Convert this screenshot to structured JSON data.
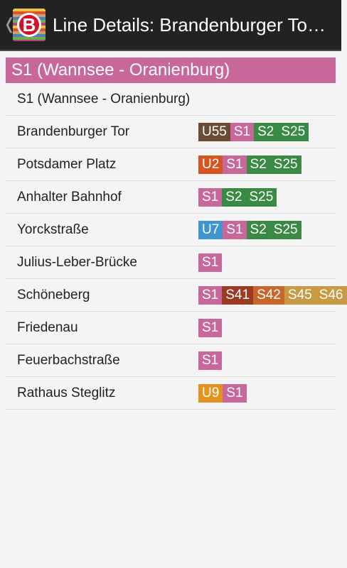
{
  "actionbar": {
    "up_caret": "❬",
    "icon_letter": "B",
    "title": "Line Details: Brandenburger To…"
  },
  "header": {
    "label": "S1 (Wannsee - Oranienburg)"
  },
  "colors": {
    "U55": "#6b4a36",
    "S1": "#c8679a",
    "S2": "#3a8a45",
    "S25": "#3a8a45",
    "U2": "#d65420",
    "U7": "#3f95cf",
    "S41": "#9b3b24",
    "S42": "#c8662b",
    "S45": "#c99a44",
    "S46": "#c99a44",
    "U9": "#e3911f"
  },
  "rows": [
    {
      "name": "S1 (Wannsee - Oranienburg)",
      "lines": []
    },
    {
      "name": "Brandenburger Tor",
      "lines": [
        "U55",
        "S1",
        "S2",
        "S25"
      ]
    },
    {
      "name": "Potsdamer Platz",
      "lines": [
        "U2",
        "S1",
        "S2",
        "S25"
      ]
    },
    {
      "name": "Anhalter Bahnhof",
      "lines": [
        "S1",
        "S2",
        "S25"
      ]
    },
    {
      "name": "Yorckstraße",
      "lines": [
        "U7",
        "S1",
        "S2",
        "S25"
      ]
    },
    {
      "name": "Julius-Leber-Brücke",
      "lines": [
        "S1"
      ]
    },
    {
      "name": "Schöneberg",
      "lines": [
        "S1",
        "S41",
        "S42",
        "S45",
        "S46"
      ]
    },
    {
      "name": "Friedenau",
      "lines": [
        "S1"
      ]
    },
    {
      "name": "Feuerbachstraße",
      "lines": [
        "S1"
      ]
    },
    {
      "name": "Rathaus Steglitz",
      "lines": [
        "U9",
        "S1"
      ]
    }
  ]
}
